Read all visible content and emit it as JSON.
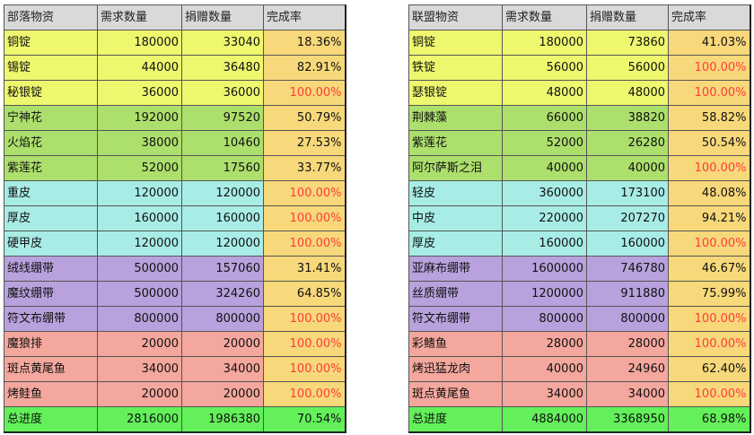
{
  "colors": {
    "ore": "#eef76e",
    "herb": "#addf6c",
    "leather": "#a8ece6",
    "bandage": "#b8a1dc",
    "food": "#f4a79d",
    "total": "#63f05a",
    "rate_bg": "#f7d87a",
    "rate_full_text": "#ff3b3b",
    "header_bg": "#d9d9d9"
  },
  "tribe": {
    "headers": [
      "部落物资",
      "需求数量",
      "捐赠数量",
      "完成率"
    ],
    "rows": [
      {
        "name": "铜锭",
        "demand": "180000",
        "donated": "33040",
        "rate": "18.36%",
        "group": "ore",
        "full": false
      },
      {
        "name": "锡锭",
        "demand": "44000",
        "donated": "36480",
        "rate": "82.91%",
        "group": "ore",
        "full": false
      },
      {
        "name": "秘银锭",
        "demand": "36000",
        "donated": "36000",
        "rate": "100.00%",
        "group": "ore",
        "full": true
      },
      {
        "name": "宁神花",
        "demand": "192000",
        "donated": "97520",
        "rate": "50.79%",
        "group": "herb",
        "full": false
      },
      {
        "name": "火焰花",
        "demand": "38000",
        "donated": "10460",
        "rate": "27.53%",
        "group": "herb",
        "full": false
      },
      {
        "name": "紫莲花",
        "demand": "52000",
        "donated": "17560",
        "rate": "33.77%",
        "group": "herb",
        "full": false
      },
      {
        "name": "重皮",
        "demand": "120000",
        "donated": "120000",
        "rate": "100.00%",
        "group": "leather",
        "full": true
      },
      {
        "name": "厚皮",
        "demand": "160000",
        "donated": "160000",
        "rate": "100.00%",
        "group": "leather",
        "full": true
      },
      {
        "name": "硬甲皮",
        "demand": "120000",
        "donated": "120000",
        "rate": "100.00%",
        "group": "leather",
        "full": true
      },
      {
        "name": "绒线绷带",
        "demand": "500000",
        "donated": "157060",
        "rate": "31.41%",
        "group": "bandage",
        "full": false
      },
      {
        "name": "魔纹绷带",
        "demand": "500000",
        "donated": "324260",
        "rate": "64.85%",
        "group": "bandage",
        "full": false
      },
      {
        "name": "符文布绷带",
        "demand": "800000",
        "donated": "800000",
        "rate": "100.00%",
        "group": "bandage",
        "full": true
      },
      {
        "name": "魔狼排",
        "demand": "20000",
        "donated": "20000",
        "rate": "100.00%",
        "group": "food",
        "full": true
      },
      {
        "name": "斑点黄尾鱼",
        "demand": "34000",
        "donated": "34000",
        "rate": "100.00%",
        "group": "food",
        "full": true
      },
      {
        "name": "烤鲑鱼",
        "demand": "20000",
        "donated": "20000",
        "rate": "100.00%",
        "group": "food",
        "full": true
      }
    ],
    "total": {
      "name": "总进度",
      "demand": "2816000",
      "donated": "1986380",
      "rate": "70.54%"
    }
  },
  "alliance": {
    "headers": [
      "联盟物资",
      "需求数量",
      "捐赠数量",
      "完成率"
    ],
    "rows": [
      {
        "name": "铜锭",
        "demand": "180000",
        "donated": "73860",
        "rate": "41.03%",
        "group": "ore",
        "full": false
      },
      {
        "name": "铁锭",
        "demand": "56000",
        "donated": "56000",
        "rate": "100.00%",
        "group": "ore",
        "full": true
      },
      {
        "name": "瑟银锭",
        "demand": "48000",
        "donated": "48000",
        "rate": "100.00%",
        "group": "ore",
        "full": true
      },
      {
        "name": "荆棘藻",
        "demand": "66000",
        "donated": "38820",
        "rate": "58.82%",
        "group": "herb",
        "full": false
      },
      {
        "name": "紫莲花",
        "demand": "52000",
        "donated": "26280",
        "rate": "50.54%",
        "group": "herb",
        "full": false
      },
      {
        "name": "阿尔萨斯之泪",
        "demand": "40000",
        "donated": "40000",
        "rate": "100.00%",
        "group": "herb",
        "full": true
      },
      {
        "name": "轻皮",
        "demand": "360000",
        "donated": "173100",
        "rate": "48.08%",
        "group": "leather",
        "full": false
      },
      {
        "name": "中皮",
        "demand": "220000",
        "donated": "207270",
        "rate": "94.21%",
        "group": "leather",
        "full": false
      },
      {
        "name": "厚皮",
        "demand": "160000",
        "donated": "160000",
        "rate": "100.00%",
        "group": "leather",
        "full": true
      },
      {
        "name": "亚麻布绷带",
        "demand": "1600000",
        "donated": "746780",
        "rate": "46.67%",
        "group": "bandage",
        "full": false
      },
      {
        "name": "丝质绷带",
        "demand": "1200000",
        "donated": "911880",
        "rate": "75.99%",
        "group": "bandage",
        "full": false
      },
      {
        "name": "符文布绷带",
        "demand": "800000",
        "donated": "800000",
        "rate": "100.00%",
        "group": "bandage",
        "full": true
      },
      {
        "name": "彩鳍鱼",
        "demand": "28000",
        "donated": "28000",
        "rate": "100.00%",
        "group": "food",
        "full": true
      },
      {
        "name": "烤迅猛龙肉",
        "demand": "40000",
        "donated": "24960",
        "rate": "62.40%",
        "group": "food",
        "full": false
      },
      {
        "name": "斑点黄尾鱼",
        "demand": "34000",
        "donated": "34000",
        "rate": "100.00%",
        "group": "food",
        "full": true
      }
    ],
    "total": {
      "name": "总进度",
      "demand": "4884000",
      "donated": "3368950",
      "rate": "68.98%"
    }
  }
}
